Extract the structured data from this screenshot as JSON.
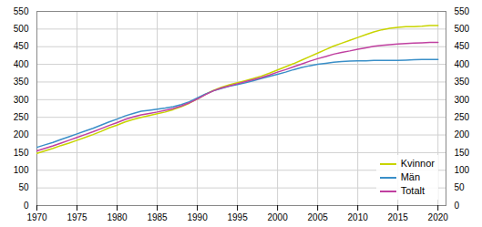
{
  "chart_data": {
    "type": "line",
    "x": [
      1970,
      1971,
      1972,
      1973,
      1974,
      1975,
      1976,
      1977,
      1978,
      1979,
      1980,
      1981,
      1982,
      1983,
      1984,
      1985,
      1986,
      1987,
      1988,
      1989,
      1990,
      1991,
      1992,
      1993,
      1994,
      1995,
      1996,
      1997,
      1998,
      1999,
      2000,
      2001,
      2002,
      2003,
      2004,
      2005,
      2006,
      2007,
      2008,
      2009,
      2010,
      2011,
      2012,
      2013,
      2014,
      2015,
      2016,
      2017,
      2018,
      2019,
      2020
    ],
    "series": [
      {
        "name": "Kvinnor",
        "color": "#c8d400",
        "values": [
          148,
          155,
          162,
          170,
          177,
          185,
          193,
          201,
          210,
          220,
          228,
          237,
          244,
          250,
          255,
          260,
          265,
          272,
          280,
          290,
          302,
          315,
          326,
          335,
          342,
          348,
          354,
          360,
          367,
          375,
          384,
          393,
          402,
          412,
          422,
          432,
          442,
          452,
          460,
          468,
          476,
          484,
          492,
          498,
          502,
          505,
          507,
          507,
          508,
          510,
          510
        ]
      },
      {
        "name": "Män",
        "color": "#3a8fc8",
        "values": [
          165,
          172,
          179,
          187,
          195,
          203,
          211,
          219,
          228,
          237,
          245,
          254,
          261,
          267,
          270,
          273,
          276,
          280,
          286,
          294,
          305,
          316,
          325,
          332,
          338,
          343,
          348,
          354,
          360,
          366,
          372,
          378,
          385,
          391,
          396,
          400,
          403,
          406,
          408,
          409,
          410,
          410,
          411,
          411,
          411,
          411,
          412,
          413,
          414,
          414,
          414
        ]
      },
      {
        "name": "Totalt",
        "color": "#c040a0",
        "values": [
          155,
          162,
          169,
          177,
          185,
          193,
          201,
          209,
          218,
          227,
          235,
          244,
          251,
          257,
          261,
          265,
          270,
          275,
          282,
          291,
          302,
          314,
          325,
          333,
          339,
          345,
          351,
          357,
          363,
          370,
          378,
          385,
          393,
          401,
          409,
          416,
          422,
          429,
          434,
          438,
          443,
          447,
          451,
          454,
          456,
          458,
          459,
          460,
          461,
          462,
          462
        ]
      }
    ],
    "xlim": [
      1970,
      2021
    ],
    "xticks": [
      1970,
      1975,
      1980,
      1985,
      1990,
      1995,
      2000,
      2005,
      2010,
      2015,
      2020
    ],
    "ylim": [
      0,
      550
    ],
    "yticks": [
      0,
      50,
      100,
      150,
      200,
      250,
      300,
      350,
      400,
      450,
      500,
      550
    ],
    "y2lim": [
      0,
      550
    ],
    "y2ticks": [
      0,
      50,
      100,
      150,
      200,
      250,
      300,
      350,
      400,
      450,
      500,
      550
    ],
    "grid": true,
    "legend": "lower right"
  }
}
